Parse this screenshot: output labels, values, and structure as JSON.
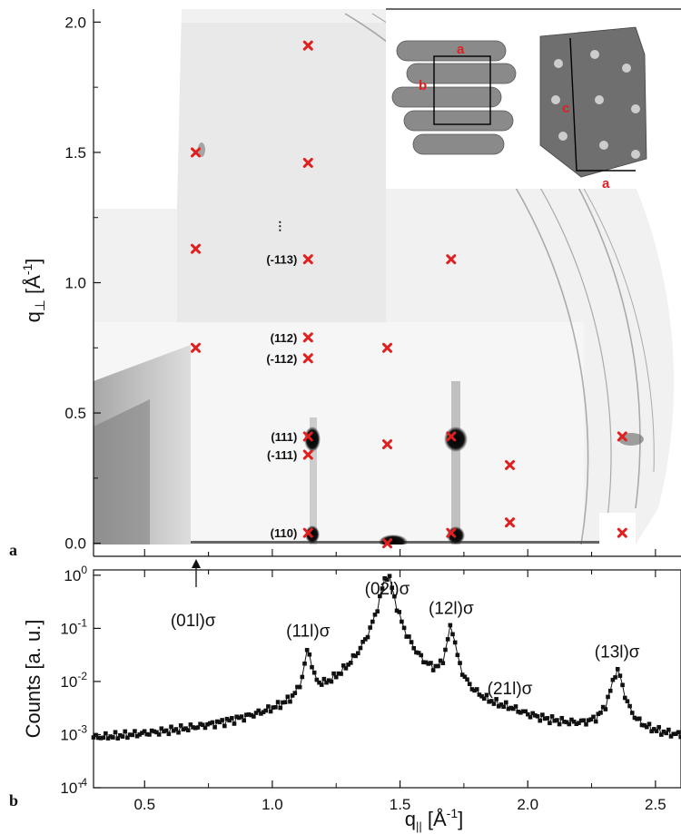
{
  "chart_data": [
    {
      "panel": "a",
      "type": "scatter",
      "ylabel": "q⊥ [Å-1]",
      "ylim": [
        -0.05,
        2.05
      ],
      "yticks": [
        "0.0",
        "0.5",
        "1.0",
        "1.5",
        "2.0"
      ],
      "marker": "x",
      "marker_color": "#e02020",
      "points": [
        {
          "x": 0.7,
          "y": 1.5
        },
        {
          "x": 0.7,
          "y": 1.13
        },
        {
          "x": 0.7,
          "y": 0.75
        },
        {
          "x": 1.14,
          "y": 1.91
        },
        {
          "x": 1.14,
          "y": 1.46
        },
        {
          "x": 1.14,
          "y": 1.09
        },
        {
          "x": 1.14,
          "y": 0.79
        },
        {
          "x": 1.14,
          "y": 0.71
        },
        {
          "x": 1.14,
          "y": 0.41
        },
        {
          "x": 1.14,
          "y": 0.34
        },
        {
          "x": 1.14,
          "y": 0.04
        },
        {
          "x": 1.45,
          "y": 0.75
        },
        {
          "x": 1.45,
          "y": 0.38
        },
        {
          "x": 1.45,
          "y": 0.0
        },
        {
          "x": 1.7,
          "y": 1.09
        },
        {
          "x": 1.7,
          "y": 0.41
        },
        {
          "x": 1.7,
          "y": 0.04
        },
        {
          "x": 1.93,
          "y": 0.3
        },
        {
          "x": 1.93,
          "y": 0.08
        },
        {
          "x": 2.37,
          "y": 0.41
        },
        {
          "x": 2.37,
          "y": 0.04
        }
      ],
      "annotations": [
        {
          "text": "(-113)",
          "x": 1.14,
          "y": 1.09
        },
        {
          "text": "(112)",
          "x": 1.14,
          "y": 0.79
        },
        {
          "text": "(-112)",
          "x": 1.14,
          "y": 0.71
        },
        {
          "text": "(111)",
          "x": 1.14,
          "y": 0.41
        },
        {
          "text": "(-111)",
          "x": 1.14,
          "y": 0.34
        },
        {
          "text": "(110)",
          "x": 1.14,
          "y": 0.04
        },
        {
          "text": "⋮",
          "x": 1.03,
          "y": 1.22
        }
      ],
      "inset_labels": [
        "a",
        "b",
        "c",
        "a"
      ]
    },
    {
      "panel": "b",
      "type": "line",
      "xlabel": "q|| [Å-1]",
      "ylabel": "Counts [a. u.]",
      "xlim": [
        0.3,
        2.6
      ],
      "ylim_log10": [
        -4,
        0.1
      ],
      "xticks": [
        "0.5",
        "1.0",
        "1.5",
        "2.0",
        "2.5"
      ],
      "yticks": [
        "10-4",
        "10-3",
        "10-2",
        "10-1",
        "100"
      ],
      "baseline": 0.0005,
      "peaks": [
        {
          "label": "(01l)σ",
          "x": 0.69,
          "height": 0
        },
        {
          "label": "(11l)σ",
          "x": 1.14,
          "height": 0.035,
          "width": 0.012
        },
        {
          "label": "(02l)σ",
          "x": 1.45,
          "height": 1.0,
          "width": 0.022
        },
        {
          "label": "(12l)σ",
          "x": 1.7,
          "height": 0.1,
          "width": 0.014
        },
        {
          "label": "(21l)σ",
          "x": 1.93,
          "height": 0.0003,
          "width": 0.05
        },
        {
          "label": "(13l)σ",
          "x": 2.35,
          "height": 0.015,
          "width": 0.02
        }
      ]
    }
  ],
  "labels": {
    "panel_a": "a",
    "panel_b": "b",
    "y_a_main": "q",
    "y_a_sub": "⊥",
    "y_a_unit": "[Å",
    "y_a_exp": "-1",
    "y_a_close": "]",
    "y_b": "Counts [a. u.]",
    "x_main": "q",
    "x_sub": "||",
    "x_unit": "[Å",
    "x_exp": "-1",
    "x_close": "]",
    "arrow_label": "(01l)σ"
  },
  "colors": {
    "marker": "#e02020",
    "ink": "#111111",
    "grid_bg": "#f2f2f2"
  }
}
